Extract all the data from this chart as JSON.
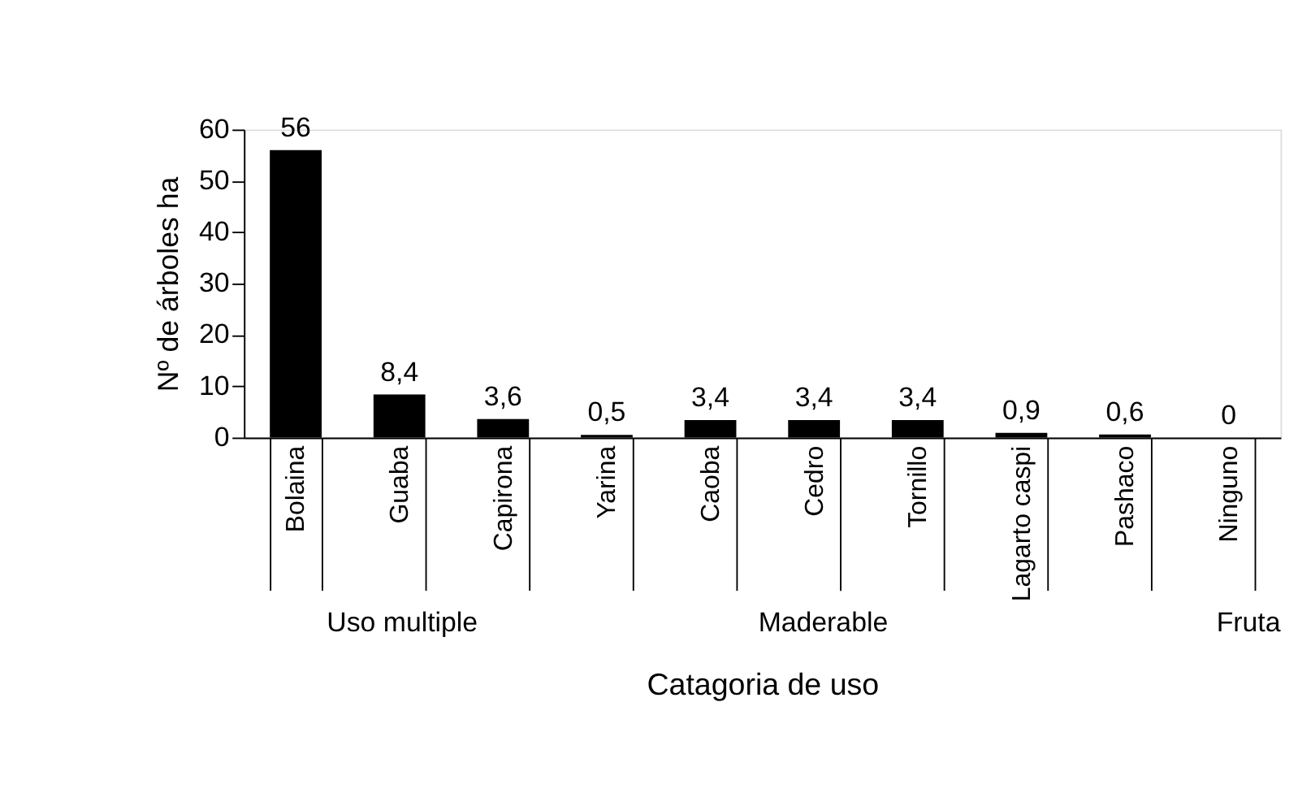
{
  "chart_data": {
    "type": "bar",
    "xlabel": "Catagoria de uso",
    "ylabel": "Nº de árboles ha",
    "categories": [
      "Bolaina",
      "Guaba",
      "Capirona",
      "Yarina",
      "Caoba",
      "Cedro",
      "Tornillo",
      "Lagarto caspi",
      "Pashaco",
      "Ninguno"
    ],
    "values": [
      56,
      8.4,
      3.6,
      0.5,
      3.4,
      3.4,
      3.4,
      0.9,
      0.6,
      0
    ],
    "value_labels": [
      "56",
      "8,4",
      "3,6",
      "0,5",
      "3,4",
      "3,4",
      "3,4",
      "0,9",
      "0,6",
      "0"
    ],
    "color": "#000000",
    "ylim": [
      0,
      60
    ],
    "yticks": [
      0,
      10,
      20,
      30,
      40,
      50,
      60
    ],
    "grid": false,
    "annotations": [
      "Uso multiple",
      "Maderable",
      "Fruta"
    ]
  }
}
